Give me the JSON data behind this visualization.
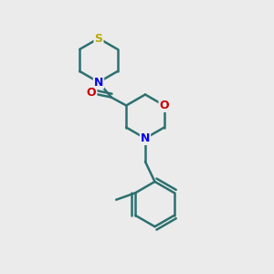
{
  "background_color": "#ebebeb",
  "bond_color": "#2d7070",
  "atom_colors": {
    "S": "#bbaa00",
    "N": "#0000ee",
    "O_carbonyl": "#cc0000",
    "O_ring": "#cc0000"
  },
  "bond_width": 1.8,
  "figsize": [
    3.0,
    3.0
  ],
  "dpi": 100
}
